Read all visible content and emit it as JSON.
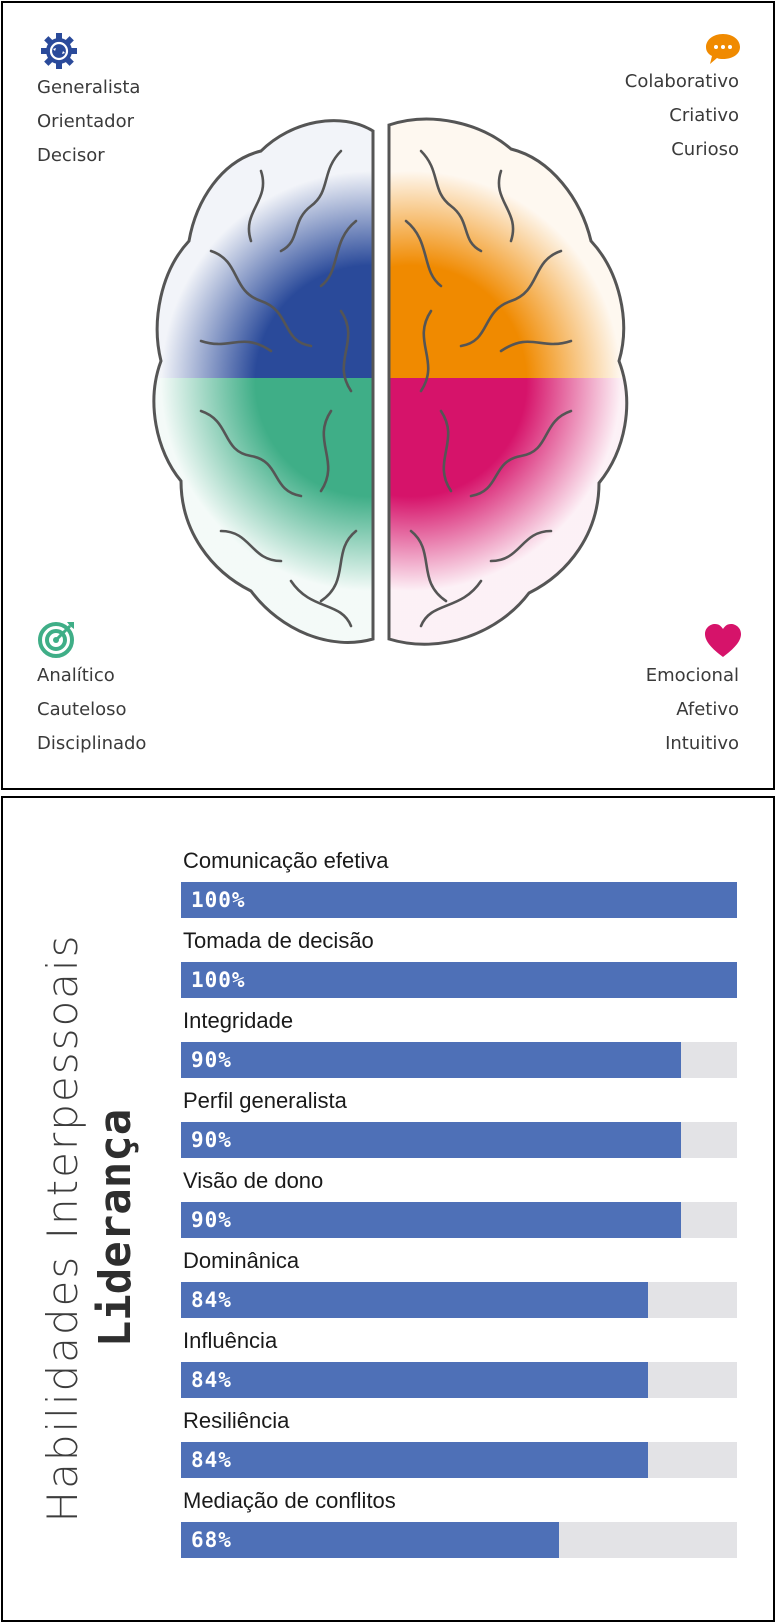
{
  "brain": {
    "quadrants": [
      {
        "id": "top-left",
        "icon": "gear-cycle-icon",
        "color": "#2a4a9a",
        "traits": [
          "Generalista",
          "Orientador",
          "Decisor"
        ]
      },
      {
        "id": "top-right",
        "icon": "speech-bubble-icon",
        "color": "#f08a00",
        "traits": [
          "Colaborativo",
          "Criativo",
          "Curioso"
        ]
      },
      {
        "id": "bottom-left",
        "icon": "target-icon",
        "color": "#3fae87",
        "traits": [
          "Analítico",
          "Cauteloso",
          "Disciplinado"
        ]
      },
      {
        "id": "bottom-right",
        "icon": "heart-icon",
        "color": "#d6136a",
        "traits": [
          "Emocional",
          "Afetivo",
          "Intuitivo"
        ]
      }
    ]
  },
  "chart_data": {
    "type": "bar",
    "orientation": "horizontal",
    "title": "Habilidades Interpessoais",
    "subtitle": "Liderança",
    "categories": [
      "Comunicação efetiva",
      "Tomada de decisão",
      "Integridade",
      "Perfil generalista",
      "Visão de dono",
      "Dominânica",
      "Influência",
      "Resiliência",
      "Mediação de conflitos"
    ],
    "values": [
      100,
      100,
      90,
      90,
      90,
      84,
      84,
      84,
      68
    ],
    "value_labels": [
      "100%",
      "100%",
      "90%",
      "90%",
      "90%",
      "84%",
      "84%",
      "84%",
      "68%"
    ],
    "xlim": [
      0,
      100
    ],
    "bar_color": "#4e70b7",
    "track_color": "#e3e3e6",
    "grid": false
  }
}
